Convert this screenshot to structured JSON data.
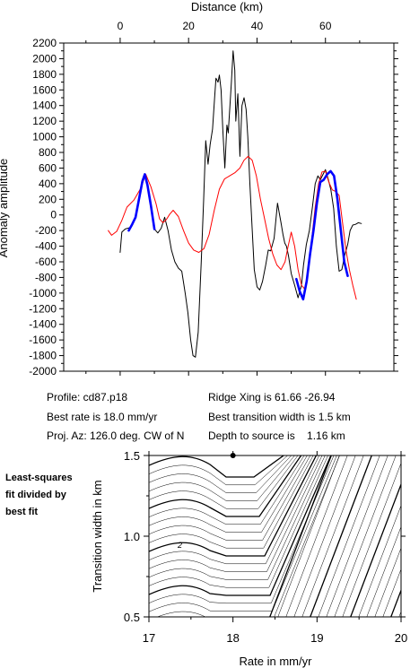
{
  "chart_data": [
    {
      "type": "line",
      "xlabel": "Distance (km)",
      "ylabel": "Anomaly amplitude",
      "xlim": [
        -16.5,
        80
      ],
      "ylim": [
        -2000,
        2200
      ],
      "x_ticks": [
        0,
        20,
        40,
        60
      ],
      "y_ticks": [
        -2000,
        -1800,
        -1600,
        -1400,
        -1200,
        -1000,
        -800,
        -600,
        -400,
        -200,
        0,
        200,
        400,
        600,
        800,
        1000,
        1200,
        1400,
        1600,
        1800,
        2000,
        2200
      ],
      "series": [
        {
          "color": "#000000",
          "x": [
            0,
            0.5,
            1.5,
            3,
            4.5,
            5.5,
            6.5,
            7.2,
            8,
            9,
            10,
            11,
            12,
            13,
            14,
            15,
            16,
            17,
            18,
            19,
            19.8,
            20.6,
            21.3,
            22,
            22.8,
            23.7,
            24.4,
            25,
            25.7,
            26.3,
            27,
            27.6,
            28,
            28.6,
            29,
            29.5,
            30,
            30.6,
            31.2,
            31.6,
            32.1,
            32.5,
            33,
            33.5,
            33.8,
            34.4,
            35,
            35.6,
            36.2,
            36.8,
            37.3,
            37.9,
            38.5,
            39.2,
            40,
            40.8,
            41.6,
            42.5,
            43.3,
            44,
            45,
            46,
            47,
            47.6,
            48.1,
            48.6,
            49.2,
            50,
            51,
            52,
            53,
            53.6,
            54.4,
            55.3,
            56.2,
            57,
            57.8,
            58.5,
            59.3,
            60,
            60.8,
            61.6,
            62.4,
            63.2,
            64,
            64.8,
            65.6,
            66.5,
            67.2,
            68,
            68.8,
            69.6,
            70.5
          ],
          "values": [
            -480,
            -220,
            -180,
            -160,
            -40,
            220,
            440,
            520,
            380,
            150,
            -180,
            -230,
            -170,
            -30,
            -200,
            -450,
            -600,
            -680,
            -720,
            -1000,
            -1250,
            -1600,
            -1800,
            -1820,
            -1500,
            -600,
            200,
            950,
            650,
            900,
            1100,
            1500,
            1750,
            1700,
            1790,
            1600,
            1100,
            600,
            1150,
            1050,
            1400,
            1700,
            2100,
            1850,
            1200,
            1550,
            750,
            1400,
            1500,
            1350,
            1000,
            400,
            -100,
            -700,
            -920,
            -960,
            -850,
            -650,
            -450,
            -460,
            -300,
            150,
            -100,
            -250,
            -360,
            -400,
            -520,
            -750,
            -900,
            -1060,
            -900,
            -640,
            -380,
            -200,
            100,
            400,
            500,
            450,
            520,
            580,
            460,
            320,
            80,
            -400,
            -720,
            -700,
            -520,
            -380,
            -200,
            -130,
            -120,
            -100,
            -110
          ]
        },
        {
          "color": "#ff0000",
          "x": [
            -3.5,
            -2.5,
            -1,
            0.5,
            2,
            4,
            6,
            7.5,
            9,
            10.5,
            11.5,
            12.5,
            13.5,
            14.5,
            15.5,
            17,
            18.5,
            20,
            21.5,
            23,
            24.5,
            26,
            27.5,
            29,
            30.5,
            32,
            33.5,
            35,
            36.2,
            37.4,
            38.6,
            39.8,
            41,
            42.2,
            43.4,
            44.6,
            45.8,
            47,
            48.2,
            49,
            50,
            51,
            52,
            53,
            54,
            55,
            56,
            57,
            58,
            59,
            60,
            61,
            62,
            63,
            64,
            65,
            66,
            67,
            68,
            69
          ],
          "values": [
            -200,
            -260,
            -210,
            -70,
            100,
            190,
            340,
            520,
            360,
            140,
            -50,
            -100,
            -60,
            10,
            60,
            -20,
            -200,
            -360,
            -450,
            -480,
            -430,
            -250,
            60,
            330,
            460,
            500,
            540,
            600,
            700,
            750,
            700,
            500,
            200,
            -50,
            -300,
            -500,
            -640,
            -700,
            -600,
            -420,
            -220,
            -400,
            -700,
            -900,
            -950,
            -700,
            -300,
            100,
            400,
            550,
            560,
            420,
            320,
            300,
            250,
            -100,
            -450,
            -700,
            -900,
            -1080
          ]
        },
        {
          "color": "#0000ff",
          "x": [
            2.5,
            3.5,
            4.5,
            5.5,
            6.5,
            7.2,
            8,
            9,
            10
          ],
          "values": [
            -200,
            -120,
            -30,
            200,
            430,
            520,
            380,
            120,
            -180
          ]
        },
        {
          "color": "#0000ff",
          "x": [
            51.5,
            52.5,
            53.5,
            54.5,
            55.5,
            56.5,
            57.5,
            58.5,
            59.5,
            60.5,
            61.5,
            62.5,
            63.5,
            64.5,
            65.5,
            66.5
          ],
          "values": [
            -820,
            -980,
            -1080,
            -850,
            -500,
            -200,
            150,
            420,
            450,
            520,
            560,
            500,
            200,
            -200,
            -600,
            -780
          ]
        }
      ]
    },
    {
      "type": "contour",
      "xlabel": "Rate in mm/yr",
      "ylabel": "Transition width in km",
      "xlim": [
        17,
        20
      ],
      "ylim": [
        0.5,
        1.5
      ],
      "x_ticks": [
        17,
        18,
        19,
        20
      ],
      "y_ticks": [
        0.5,
        1.0,
        1.5
      ],
      "contour_label": "2",
      "best_fit": {
        "rate": 18.0,
        "width": 1.5
      }
    }
  ],
  "profile": {
    "name": "Profile: cd87.p18",
    "rate": "Best rate is 18.0 mm/yr",
    "azimuth": "Proj. Az: 126.0 deg. CW of N",
    "ridge": "Ridge Xing is 61.66 -26.94",
    "width": "Best transition width is 1.5 km",
    "depth": "Depth to source is    1.16 km"
  },
  "note": {
    "line1": "Least-squares",
    "line2": "fit divided by",
    "line3": "best fit"
  }
}
